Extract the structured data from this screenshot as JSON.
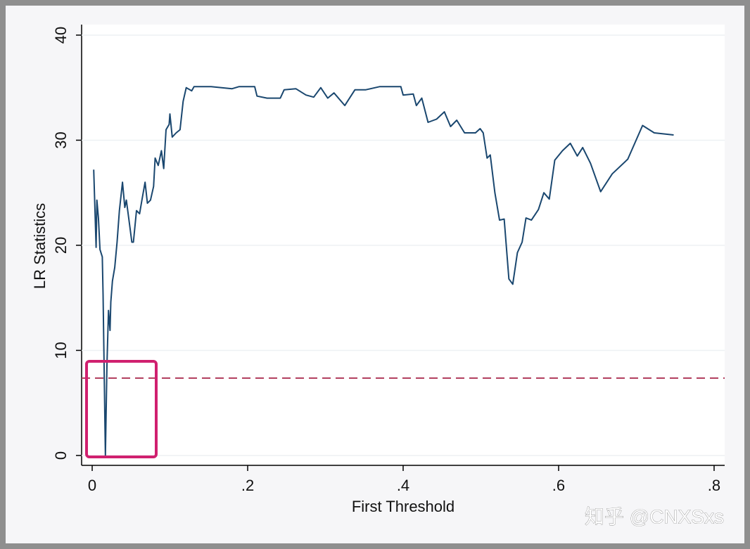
{
  "chart_data": {
    "type": "line",
    "xlabel": "First Threshold",
    "ylabel": "LR Statistics",
    "watermark": "知乎 @CNXSxs",
    "color": "#1a476f",
    "x": [
      0.002,
      0.005,
      0.006,
      0.008,
      0.01,
      0.013,
      0.014,
      0.017,
      0.019,
      0.021,
      0.023,
      0.024,
      0.026,
      0.029,
      0.032,
      0.035,
      0.039,
      0.042,
      0.044,
      0.048,
      0.051,
      0.053,
      0.057,
      0.061,
      0.064,
      0.068,
      0.071,
      0.075,
      0.079,
      0.081,
      0.085,
      0.089,
      0.092,
      0.095,
      0.099,
      0.1,
      0.103,
      0.108,
      0.113,
      0.117,
      0.121,
      0.128,
      0.131,
      0.153,
      0.18,
      0.189,
      0.209,
      0.212,
      0.225,
      0.242,
      0.247,
      0.262,
      0.275,
      0.285,
      0.294,
      0.303,
      0.311,
      0.325,
      0.338,
      0.352,
      0.37,
      0.397,
      0.4,
      0.413,
      0.417,
      0.424,
      0.432,
      0.443,
      0.453,
      0.461,
      0.469,
      0.479,
      0.493,
      0.499,
      0.503,
      0.508,
      0.512,
      0.518,
      0.524,
      0.53,
      0.536,
      0.541,
      0.547,
      0.553,
      0.558,
      0.565,
      0.574,
      0.581,
      0.588,
      0.595,
      0.605,
      0.615,
      0.624,
      0.631,
      0.641,
      0.654,
      0.669,
      0.689,
      0.708,
      0.723,
      0.748
    ],
    "values": [
      27.2,
      19.8,
      24.3,
      22.6,
      19.6,
      18.9,
      15.3,
      0,
      8.6,
      13.8,
      11.9,
      14.6,
      16.6,
      17.9,
      20.3,
      23.3,
      26.0,
      23.6,
      24.3,
      22.0,
      20.3,
      20.3,
      23.3,
      23.0,
      24.3,
      26.0,
      24.0,
      24.3,
      25.6,
      28.3,
      27.6,
      29.0,
      27.3,
      31.0,
      31.5,
      32.5,
      30.3,
      30.7,
      31.0,
      33.7,
      35.0,
      34.7,
      35.1,
      35.1,
      34.9,
      35.1,
      35.1,
      34.2,
      34.0,
      34.0,
      34.8,
      34.9,
      34.3,
      34.1,
      35.0,
      34.0,
      34.5,
      33.3,
      34.8,
      34.8,
      35.1,
      35.1,
      34.3,
      34.4,
      33.3,
      34.0,
      31.7,
      32.0,
      32.7,
      31.3,
      31.9,
      30.7,
      30.7,
      31.1,
      30.7,
      28.3,
      28.6,
      25.0,
      22.4,
      22.5,
      16.8,
      16.3,
      19.3,
      20.3,
      22.6,
      22.4,
      23.4,
      25.0,
      24.4,
      28.1,
      29.0,
      29.7,
      28.5,
      29.3,
      27.8,
      25.1,
      26.8,
      28.2,
      31.4,
      30.7,
      30.5
    ],
    "hline": {
      "value": 7.36,
      "color": "#b03a5b",
      "style": "dashed"
    },
    "xlim": [
      -0.0136,
      0.8136
    ],
    "ylim": [
      -0.94,
      41.0
    ],
    "xticks": [
      0,
      {
        "value": 0.2,
        "label": ".2"
      },
      {
        "value": 0.4,
        "label": ".4"
      },
      {
        "value": 0.6,
        "label": ".6"
      },
      {
        "value": 0.8,
        "label": ".8"
      }
    ],
    "yticks": [
      0,
      10,
      20,
      30,
      40
    ],
    "grid": true
  }
}
